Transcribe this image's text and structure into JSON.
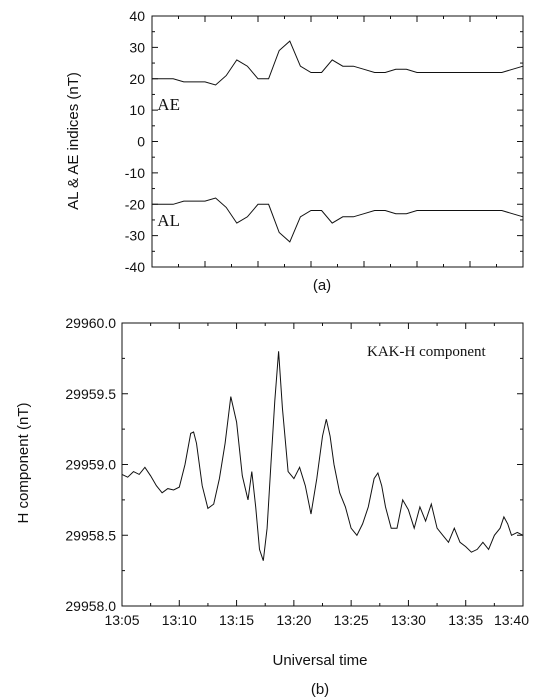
{
  "chart_data": [
    {
      "type": "line",
      "caption": "(a)",
      "ylabel": "AL & AE indices (nT)",
      "ylim": [
        -40,
        40
      ],
      "yticks": [
        40,
        30,
        20,
        10,
        0,
        -10,
        -20,
        -30,
        -40
      ],
      "x_unit": "minutes after 13:05",
      "xlim": [
        0,
        35
      ],
      "series": [
        {
          "name": "AE",
          "x": [
            0,
            2,
            3,
            5,
            6,
            7,
            8,
            9,
            10,
            11,
            12,
            13,
            14,
            15,
            16,
            17,
            18,
            19,
            20,
            21,
            22,
            23,
            24,
            25,
            26,
            27,
            28,
            30,
            31,
            33,
            34,
            35
          ],
          "values": [
            20,
            20,
            19,
            19,
            18,
            21,
            26,
            24,
            20,
            20,
            29,
            32,
            24,
            22,
            22,
            26,
            24,
            24,
            23,
            22,
            22,
            23,
            23,
            22,
            22,
            22,
            22,
            22,
            22,
            22,
            23,
            24
          ]
        },
        {
          "name": "AL",
          "x": [
            0,
            2,
            3,
            5,
            6,
            7,
            8,
            9,
            10,
            11,
            12,
            13,
            14,
            15,
            16,
            17,
            18,
            19,
            20,
            21,
            22,
            23,
            24,
            25,
            26,
            27,
            28,
            30,
            31,
            33,
            34,
            35
          ],
          "values": [
            -20,
            -20,
            -19,
            -19,
            -18,
            -21,
            -26,
            -24,
            -20,
            -20,
            -29,
            -32,
            -24,
            -22,
            -22,
            -26,
            -24,
            -24,
            -23,
            -22,
            -22,
            -23,
            -23,
            -22,
            -22,
            -22,
            -22,
            -22,
            -22,
            -22,
            -23,
            -24
          ]
        }
      ]
    },
    {
      "type": "line",
      "caption": "(b)",
      "ylabel": "H component (nT)",
      "xlabel": "Universal time",
      "annotation": "KAK-H component",
      "ylim": [
        29958.0,
        29960.0
      ],
      "yticks": [
        "29960.0",
        "29959.5",
        "29959.0",
        "29958.5",
        "29958.0"
      ],
      "xlim": [
        "13:05",
        "13:40"
      ],
      "xticks": [
        "13:05",
        "13:10",
        "13:15",
        "13:20",
        "13:25",
        "13:30",
        "13:35",
        "13:40"
      ],
      "series": [
        {
          "name": "KAK-H component",
          "x": [
            "13:05:00",
            "13:05:30",
            "13:06:00",
            "13:06:30",
            "13:07:00",
            "13:07:30",
            "13:08:00",
            "13:08:30",
            "13:09:00",
            "13:09:30",
            "13:10:00",
            "13:10:30",
            "13:11:00",
            "13:11:15",
            "13:11:30",
            "13:12:00",
            "13:12:30",
            "13:13:00",
            "13:13:30",
            "13:14:00",
            "13:14:30",
            "13:15:00",
            "13:15:30",
            "13:16:00",
            "13:16:20",
            "13:16:40",
            "13:17:00",
            "13:17:20",
            "13:17:40",
            "13:18:00",
            "13:18:20",
            "13:18:40",
            "13:19:00",
            "13:19:30",
            "13:20:00",
            "13:20:30",
            "13:21:00",
            "13:21:30",
            "13:22:00",
            "13:22:30",
            "13:22:50",
            "13:23:10",
            "13:23:30",
            "13:24:00",
            "13:24:30",
            "13:25:00",
            "13:25:30",
            "13:26:00",
            "13:26:30",
            "13:27:00",
            "13:27:20",
            "13:27:40",
            "13:28:00",
            "13:28:30",
            "13:29:00",
            "13:29:30",
            "13:30:00",
            "13:30:30",
            "13:31:00",
            "13:31:30",
            "13:32:00",
            "13:32:30",
            "13:33:00",
            "13:33:30",
            "13:34:00",
            "13:34:30",
            "13:35:00",
            "13:35:30",
            "13:36:00",
            "13:36:30",
            "13:37:00",
            "13:37:30",
            "13:38:00",
            "13:38:20",
            "13:38:40",
            "13:39:00",
            "13:39:30",
            "13:40:00"
          ],
          "values": [
            29958.93,
            29958.91,
            29958.95,
            29958.93,
            29958.98,
            29958.92,
            29958.85,
            29958.8,
            29958.83,
            29958.82,
            29958.84,
            29959.0,
            29959.22,
            29959.23,
            29959.15,
            29958.85,
            29958.69,
            29958.72,
            29958.9,
            29959.15,
            29959.48,
            29959.3,
            29958.92,
            29958.75,
            29958.95,
            29958.7,
            29958.4,
            29958.32,
            29958.55,
            29959.0,
            29959.45,
            29959.8,
            29959.4,
            29958.95,
            29958.9,
            29958.98,
            29958.85,
            29958.65,
            29958.9,
            29959.2,
            29959.32,
            29959.2,
            29959.0,
            29958.8,
            29958.7,
            29958.55,
            29958.5,
            29958.58,
            29958.7,
            29958.9,
            29958.94,
            29958.85,
            29958.7,
            29958.55,
            29958.55,
            29958.75,
            29958.68,
            29958.55,
            29958.7,
            29958.6,
            29958.72,
            29958.55,
            29958.5,
            29958.45,
            29958.55,
            29958.45,
            29958.42,
            29958.38,
            29958.4,
            29958.45,
            29958.4,
            29958.5,
            29958.55,
            29958.63,
            29958.58,
            29958.5,
            29958.52,
            29958.5
          ]
        }
      ]
    }
  ]
}
